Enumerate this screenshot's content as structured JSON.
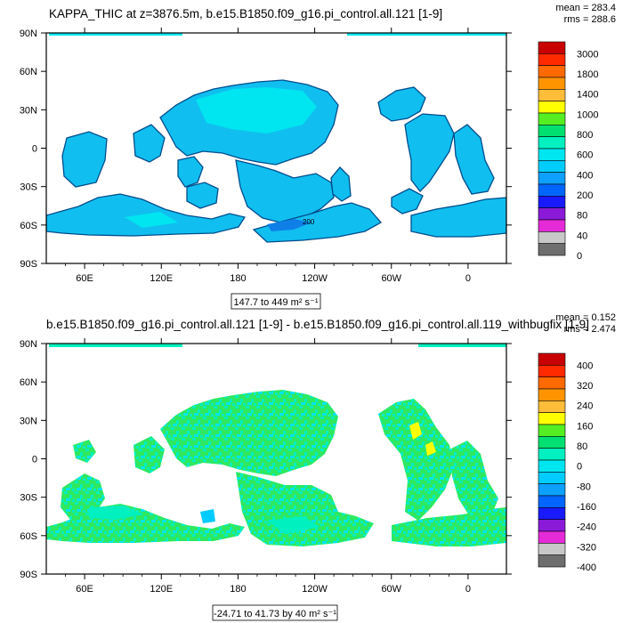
{
  "chart_data": [
    {
      "type": "heatmap",
      "title": "KAPPA_THIC at z=3876.5m, b.e15.B1850.f09_g16.pi_control.all.121 [1-9]",
      "stats": {
        "mean": "mean = 283.4",
        "rms": "rms = 288.6"
      },
      "x_ticks": [
        "60E",
        "120E",
        "180",
        "120W",
        "60W",
        "0"
      ],
      "x_tick_lons": [
        60,
        120,
        180,
        240,
        300,
        360
      ],
      "y_ticks": [
        "90N",
        "60N",
        "30N",
        "0",
        "30S",
        "60S",
        "90S"
      ],
      "y_tick_lats": [
        90,
        60,
        30,
        0,
        -30,
        -60,
        -90
      ],
      "xlim": [
        30,
        390
      ],
      "ylim": [
        -90,
        90
      ],
      "contour_info": "147.7 to 449 m² s⁻¹",
      "contour_label": "200",
      "colorbar": {
        "labels": [
          "3000",
          "1800",
          "1400",
          "1000",
          "800",
          "600",
          "400",
          "200",
          "80",
          "40",
          "0"
        ],
        "colors": [
          "#c80000",
          "#ff2a00",
          "#ff6a00",
          "#ff9400",
          "#ffbe3a",
          "#ffff00",
          "#55ee22",
          "#00e070",
          "#00f0c0",
          "#00e6f0",
          "#00ccff",
          "#0ea0ff",
          "#0066ff",
          "#1a1aff",
          "#8a1ad8",
          "#e52ad8",
          "#c8c8c8",
          "#6e6e6e"
        ]
      }
    },
    {
      "type": "heatmap",
      "title": "b.e15.B1850.f09_g16.pi_control.all.121 [1-9] - b.e15.B1850.f09_g16.pi_control.all.119_withbugfix [1-9]",
      "stats": {
        "mean": "mean = 0.152",
        "rms": "rms = 2.474"
      },
      "x_ticks": [
        "60E",
        "120E",
        "180",
        "120W",
        "60W",
        "0"
      ],
      "x_tick_lons": [
        60,
        120,
        180,
        240,
        300,
        360
      ],
      "y_ticks": [
        "90N",
        "60N",
        "30N",
        "0",
        "30S",
        "60S",
        "90S"
      ],
      "y_tick_lats": [
        90,
        60,
        30,
        0,
        -30,
        -60,
        -90
      ],
      "xlim": [
        30,
        390
      ],
      "ylim": [
        -90,
        90
      ],
      "contour_info": "-24.71 to 41.73 by 40 m² s⁻¹",
      "colorbar": {
        "labels": [
          "400",
          "320",
          "240",
          "160",
          "80",
          "0",
          "-80",
          "-160",
          "-240",
          "-320",
          "-400"
        ],
        "colors": [
          "#c80000",
          "#ff2a00",
          "#ff6a00",
          "#ff9400",
          "#ffbe3a",
          "#ffff00",
          "#55ee22",
          "#00e070",
          "#00f0c0",
          "#00e6f0",
          "#00ccff",
          "#0ea0ff",
          "#0066ff",
          "#1a1aff",
          "#8a1ad8",
          "#e52ad8",
          "#c8c8c8",
          "#6e6e6e"
        ]
      }
    }
  ]
}
